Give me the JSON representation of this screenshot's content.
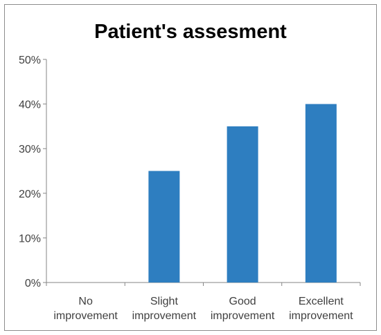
{
  "chart_data": {
    "type": "bar",
    "title": "Patient's assesment",
    "categories": [
      [
        "No",
        "improvement"
      ],
      [
        "Slight",
        "improvement"
      ],
      [
        "Good",
        "improvement"
      ],
      [
        "Excellent",
        "improvement"
      ]
    ],
    "values": [
      0,
      25,
      35,
      40
    ],
    "y_ticks": [
      "0%",
      "10%",
      "20%",
      "30%",
      "40%",
      "50%"
    ],
    "ylim": [
      0,
      50
    ],
    "unit": "%",
    "grid": false,
    "legend": "none",
    "colors": {
      "bar": "#2e7ec0",
      "axis": "#868686"
    }
  }
}
